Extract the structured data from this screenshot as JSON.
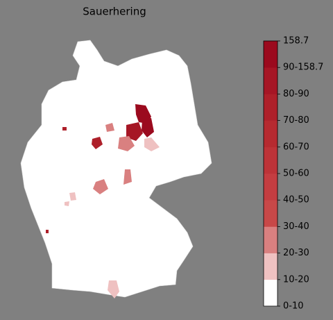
{
  "title": "Sauerhering",
  "map": {
    "region_values": [
      150,
      150,
      85,
      30,
      25,
      80,
      80,
      15,
      25,
      25,
      15,
      15,
      80,
      15
    ]
  },
  "colorbar": {
    "labels": [
      "0-10",
      "10-20",
      "20-30",
      "30-40",
      "40-50",
      "50-60",
      "60-70",
      "70-80",
      "80-90",
      "90-158.7",
      "158.7"
    ],
    "bounds": [
      0,
      10,
      20,
      30,
      40,
      50,
      60,
      70,
      80,
      90,
      158.7
    ],
    "colors": [
      "#ffffff",
      "#efc1c1",
      "#d98080",
      "#c84848",
      "#c43d41",
      "#bd3338",
      "#b62a30",
      "#ae202a",
      "#a61625",
      "#9b0a1e"
    ]
  }
}
